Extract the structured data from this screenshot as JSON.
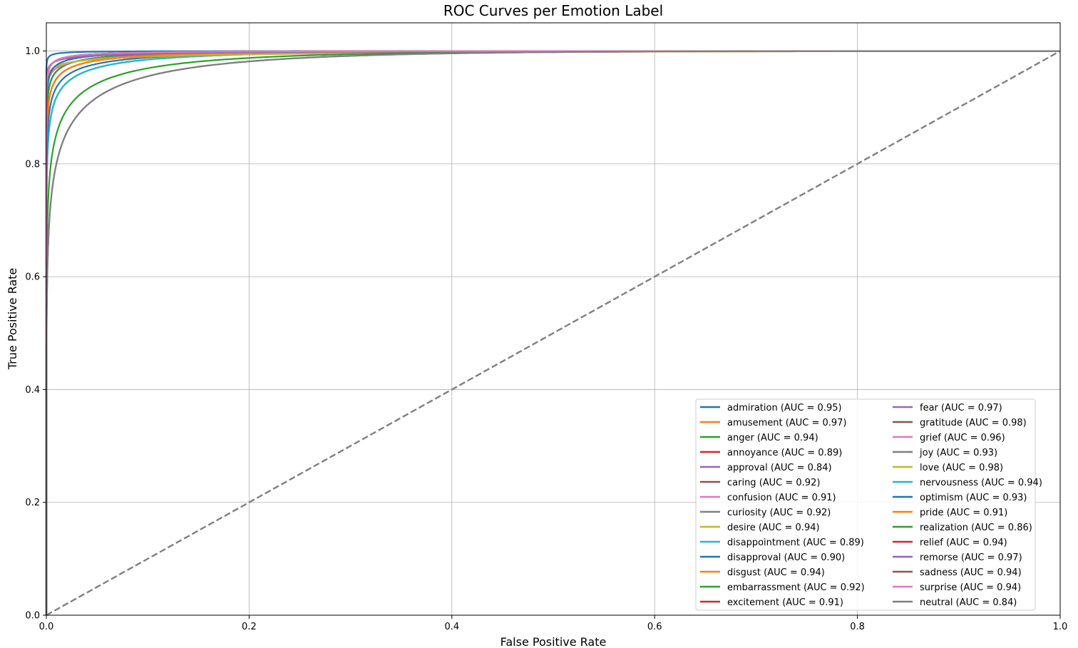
{
  "chart_data": {
    "type": "line",
    "title": "ROC Curves per Emotion Label",
    "xlabel": "False Positive Rate",
    "ylabel": "True Positive Rate",
    "xlim": [
      0,
      1
    ],
    "ylim": [
      0,
      1.05
    ],
    "xticks": [
      "0.0",
      "0.2",
      "0.4",
      "0.6",
      "0.8",
      "1.0"
    ],
    "yticks": [
      "0.0",
      "0.2",
      "0.4",
      "0.6",
      "0.8",
      "1.0"
    ],
    "grid": true,
    "legend_placement": "lower-right",
    "legend_columns": 2,
    "diagonal": {
      "x": [
        0,
        1
      ],
      "y": [
        0,
        1
      ],
      "color": "#808080",
      "style": "dashed"
    },
    "series": [
      {
        "name": "admiration (AUC = 0.95)",
        "auc": 0.95,
        "color": "#1f77b4",
        "shape": 3.5
      },
      {
        "name": "amusement (AUC = 0.97)",
        "auc": 0.97,
        "color": "#ff7f0e",
        "shape": 2.0
      },
      {
        "name": "anger (AUC = 0.94)",
        "auc": 0.94,
        "color": "#2ca02c",
        "shape": 3.0
      },
      {
        "name": "annoyance (AUC = 0.89)",
        "auc": 0.89,
        "color": "#d62728",
        "shape": 3.0
      },
      {
        "name": "approval (AUC = 0.84)",
        "auc": 0.84,
        "color": "#9467bd",
        "shape": 3.0
      },
      {
        "name": "caring (AUC = 0.92)",
        "auc": 0.92,
        "color": "#8c564b",
        "shape": 3.0
      },
      {
        "name": "confusion (AUC = 0.91)",
        "auc": 0.91,
        "color": "#e377c2",
        "shape": 3.0
      },
      {
        "name": "curiosity (AUC = 0.92)",
        "auc": 0.92,
        "color": "#7f7f7f",
        "shape": 3.0
      },
      {
        "name": "desire (AUC = 0.94)",
        "auc": 0.94,
        "color": "#bcbd22",
        "shape": 3.0
      },
      {
        "name": "disappointment (AUC = 0.89)",
        "auc": 0.89,
        "color": "#17becf",
        "shape": 3.0
      },
      {
        "name": "disapproval (AUC = 0.90)",
        "auc": 0.9,
        "color": "#1f77b4",
        "shape": 3.0
      },
      {
        "name": "disgust (AUC = 0.94)",
        "auc": 0.94,
        "color": "#ff7f0e",
        "shape": 3.0
      },
      {
        "name": "embarrassment (AUC = 0.92)",
        "auc": 0.92,
        "color": "#2ca02c",
        "shape": 3.0
      },
      {
        "name": "excitement (AUC = 0.91)",
        "auc": 0.91,
        "color": "#d62728",
        "shape": 3.0
      },
      {
        "name": "fear (AUC = 0.97)",
        "auc": 0.97,
        "color": "#9467bd",
        "shape": 2.0
      },
      {
        "name": "gratitude (AUC = 0.98)",
        "auc": 0.98,
        "color": "#8c564b",
        "shape": 1.5
      },
      {
        "name": "grief (AUC = 0.96)",
        "auc": 0.96,
        "color": "#e377c2",
        "shape": 2.0
      },
      {
        "name": "joy (AUC = 0.93)",
        "auc": 0.93,
        "color": "#7f7f7f",
        "shape": 3.0
      },
      {
        "name": "love (AUC = 0.98)",
        "auc": 0.98,
        "color": "#bcbd22",
        "shape": 1.5
      },
      {
        "name": "nervousness (AUC = 0.94)",
        "auc": 0.94,
        "color": "#17becf",
        "shape": 3.0
      },
      {
        "name": "optimism (AUC = 0.93)",
        "auc": 0.93,
        "color": "#1f77b4",
        "shape": 3.0
      },
      {
        "name": "pride (AUC = 0.91)",
        "auc": 0.91,
        "color": "#ff7f0e",
        "shape": 3.0
      },
      {
        "name": "realization (AUC = 0.86)",
        "auc": 0.86,
        "color": "#2ca02c",
        "shape": 3.0
      },
      {
        "name": "relief (AUC = 0.94)",
        "auc": 0.94,
        "color": "#d62728",
        "shape": 3.0
      },
      {
        "name": "remorse (AUC = 0.97)",
        "auc": 0.97,
        "color": "#9467bd",
        "shape": 2.0
      },
      {
        "name": "sadness (AUC = 0.94)",
        "auc": 0.94,
        "color": "#8c564b",
        "shape": 3.0
      },
      {
        "name": "surprise (AUC = 0.94)",
        "auc": 0.94,
        "color": "#e377c2",
        "shape": 3.0
      },
      {
        "name": "neutral (AUC = 0.84)",
        "auc": 0.84,
        "color": "#7f7f7f",
        "shape": 3.0
      }
    ]
  }
}
